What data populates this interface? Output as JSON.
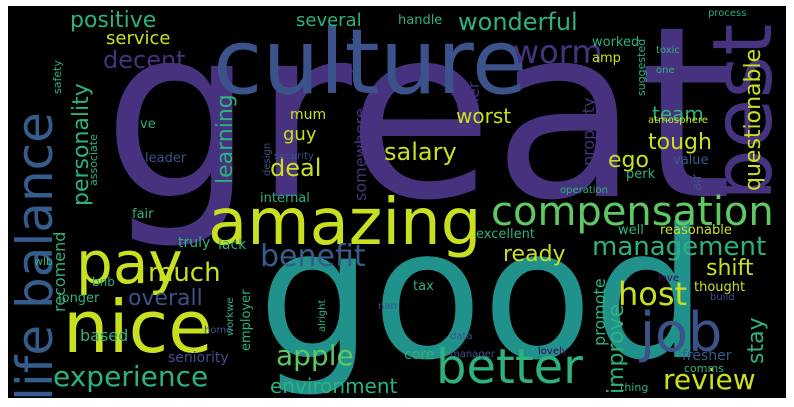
{
  "wordcloud": {
    "colors": {
      "purple": "#46327e",
      "indigo": "#3b528b",
      "blue": "#365c8d",
      "teal": "#21918c",
      "green": "#2db27d",
      "lime": "#5ec962",
      "yellow": "#c8e020",
      "darkpurple": "#440154"
    },
    "words": [
      "great",
      "good",
      "culture",
      "best",
      "amazing",
      "nice",
      "life balance",
      "pay",
      "compensation",
      "better",
      "job",
      "management",
      "benefit",
      "host",
      "worm",
      "wonderful",
      "positive",
      "several",
      "service",
      "decent",
      "personality",
      "learning",
      "salary",
      "deal",
      "experience",
      "review",
      "apple",
      "environment",
      "much",
      "overall",
      "questionable",
      "tough",
      "shift",
      "improve",
      "stay",
      "ready",
      "promote",
      "team",
      "ego",
      "property",
      "owner",
      "worst",
      "somewhere",
      "guy",
      "mum",
      "based",
      "seniority",
      "recomend",
      "truly",
      "lack",
      "tax",
      "fresher",
      "core",
      "manager",
      "thing",
      "comms",
      "lovely",
      "longer",
      "bnb",
      "wlb",
      "fair",
      "internal",
      "leader",
      "ve",
      "associate",
      "safety",
      "security",
      "employer",
      "workwe",
      "home",
      "alright",
      "nan",
      "data",
      "love",
      "thought",
      "build",
      "reasonable",
      "well",
      "excellent",
      "value",
      "operation",
      "perk",
      "atmosphere",
      "design",
      "worked",
      "amp",
      "handle",
      "process",
      "toxic",
      "one",
      "suggested",
      "depends",
      "air"
    ]
  }
}
